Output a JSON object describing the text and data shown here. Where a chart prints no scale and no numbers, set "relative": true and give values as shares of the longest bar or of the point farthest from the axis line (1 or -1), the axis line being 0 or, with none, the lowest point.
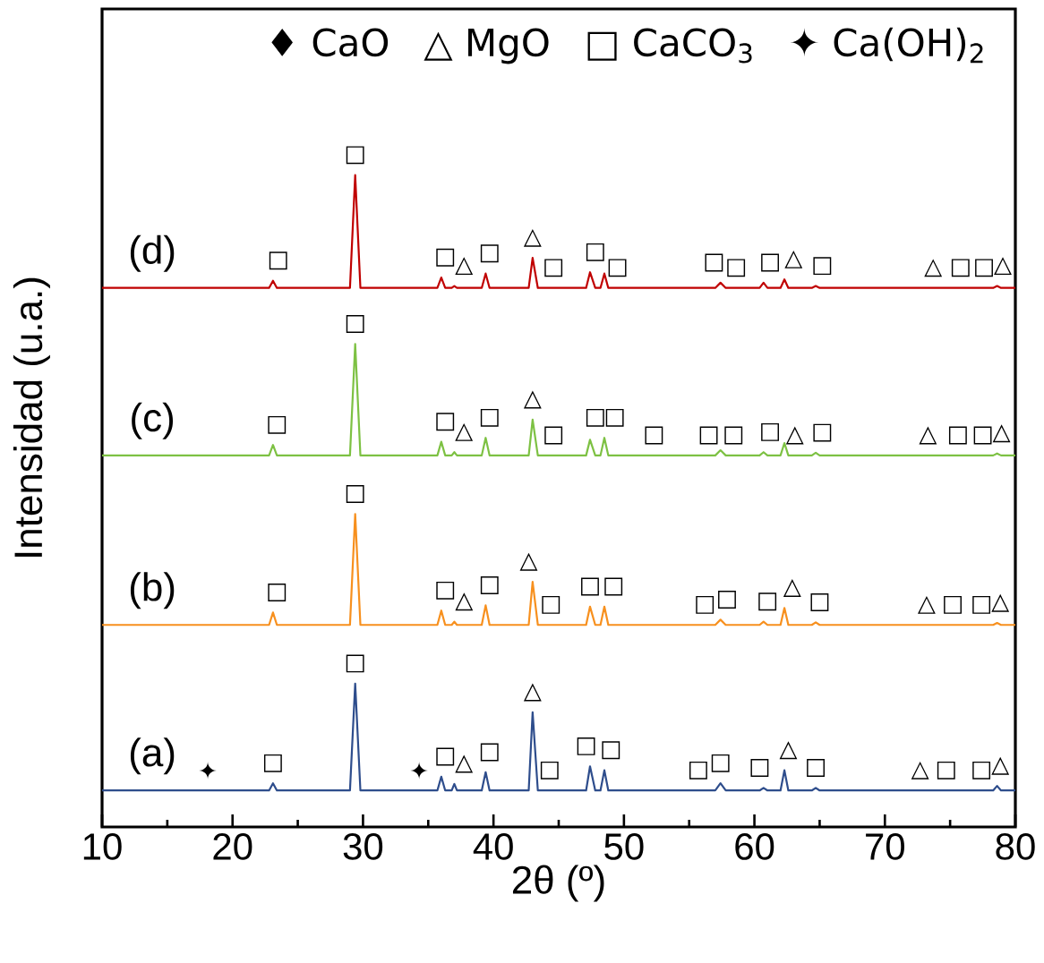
{
  "chart_data": {
    "type": "line",
    "relative": true,
    "xlabel": "2θ (º)",
    "ylabel": "Intensidad (u.a.)",
    "xlim": [
      10,
      80
    ],
    "xticks": [
      10,
      {
        "value": 15,
        "label": null
      },
      20,
      {
        "value": 25,
        "label": null
      },
      30,
      {
        "value": 35,
        "label": null
      },
      40,
      {
        "value": 45,
        "label": null
      },
      50,
      {
        "value": 55,
        "label": null
      },
      60,
      {
        "value": 65,
        "label": null
      },
      70,
      {
        "value": 75,
        "label": null
      },
      80
    ],
    "grid": false,
    "marker": "none",
    "line_style": "solid",
    "x": [
      10,
      22.8,
      23.1,
      23.4,
      29.0,
      29.4,
      29.8,
      35.7,
      36.0,
      36.3,
      36.8,
      37.0,
      37.2,
      39.1,
      39.4,
      39.7,
      42.7,
      43.0,
      43.4,
      47.1,
      47.4,
      47.8,
      48.2,
      48.5,
      48.8,
      57.0,
      57.4,
      57.8,
      60.4,
      60.7,
      61.0,
      62.0,
      62.3,
      62.6,
      64.4,
      64.7,
      65.0,
      78.3,
      78.6,
      78.9,
      80
    ],
    "series": [
      {
        "name": "(a)",
        "color": "#2e4d8c",
        "values": [
          0.056,
          0.056,
          0.067,
          0.056,
          0.056,
          0.22,
          0.056,
          0.056,
          0.077,
          0.056,
          0.056,
          0.066,
          0.056,
          0.056,
          0.084,
          0.056,
          0.056,
          0.176,
          0.056,
          0.056,
          0.093,
          0.056,
          0.056,
          0.087,
          0.056,
          0.056,
          0.067,
          0.056,
          0.056,
          0.06,
          0.056,
          0.056,
          0.087,
          0.056,
          0.056,
          0.06,
          0.056,
          0.056,
          0.063,
          0.056,
          0.056
        ]
      },
      {
        "name": "(b)",
        "color": "#f7901e",
        "values": [
          0.31,
          0.31,
          0.329,
          0.31,
          0.31,
          0.48,
          0.31,
          0.31,
          0.332,
          0.31,
          0.31,
          0.315,
          0.31,
          0.31,
          0.34,
          0.31,
          0.31,
          0.376,
          0.31,
          0.31,
          0.338,
          0.31,
          0.31,
          0.338,
          0.31,
          0.31,
          0.318,
          0.31,
          0.31,
          0.315,
          0.31,
          0.31,
          0.336,
          0.31,
          0.31,
          0.314,
          0.31,
          0.31,
          0.313,
          0.31,
          0.31
        ]
      },
      {
        "name": "(c)",
        "color": "#7dc143",
        "values": [
          0.57,
          0.57,
          0.586,
          0.57,
          0.57,
          0.741,
          0.57,
          0.57,
          0.591,
          0.57,
          0.57,
          0.575,
          0.57,
          0.57,
          0.597,
          0.57,
          0.57,
          0.625,
          0.57,
          0.57,
          0.594,
          0.57,
          0.57,
          0.597,
          0.57,
          0.57,
          0.578,
          0.57,
          0.57,
          0.575,
          0.57,
          0.57,
          0.589,
          0.57,
          0.57,
          0.574,
          0.57,
          0.57,
          0.573,
          0.57,
          0.57
        ]
      },
      {
        "name": "(d)",
        "color": "#c00000",
        "values": [
          0.827,
          0.827,
          0.838,
          0.827,
          0.827,
          1.0,
          0.827,
          0.827,
          0.843,
          0.827,
          0.827,
          0.83,
          0.827,
          0.827,
          0.849,
          0.827,
          0.827,
          0.873,
          0.827,
          0.827,
          0.851,
          0.827,
          0.827,
          0.849,
          0.827,
          0.827,
          0.835,
          0.827,
          0.827,
          0.835,
          0.827,
          0.827,
          0.84,
          0.827,
          0.827,
          0.83,
          0.827,
          0.827,
          0.83,
          0.827,
          0.827
        ]
      }
    ],
    "annotations": [
      "♦ CaO",
      "△ MgO",
      "□ CaCO$_{3}$",
      "✦ Ca(OH)$_{2}$",
      {
        "text": "□",
        "x": 23.5,
        "y": 0.827
      },
      {
        "text": "□",
        "x": 29.4,
        "y": 1.0
      },
      {
        "text": "□",
        "x": 36.3,
        "y": 0.827
      },
      {
        "text": "△",
        "x": 37.7,
        "y": 0.827
      },
      {
        "text": "□",
        "x": 39.7,
        "y": 0.827
      },
      {
        "text": "△",
        "x": 43.0,
        "y": 0.873
      },
      {
        "text": "□",
        "x": 44.6,
        "y": 0.827
      },
      {
        "text": "□",
        "x": 47.8,
        "y": 0.827
      },
      {
        "text": "□",
        "x": 49.5,
        "y": 0.827
      },
      {
        "text": "□",
        "x": 56.9,
        "y": 0.827
      },
      {
        "text": "□",
        "x": 58.6,
        "y": 0.827
      },
      {
        "text": "□",
        "x": 61.2,
        "y": 0.827
      },
      {
        "text": "△",
        "x": 63.0,
        "y": 0.827
      },
      {
        "text": "□",
        "x": 65.2,
        "y": 0.827
      },
      {
        "text": "△",
        "x": 73.7,
        "y": 0.827
      },
      {
        "text": "□",
        "x": 75.8,
        "y": 0.827
      },
      {
        "text": "□",
        "x": 77.6,
        "y": 0.827
      },
      {
        "text": "△",
        "x": 78.6,
        "y": 0.83
      },
      {
        "text": "□",
        "x": 23.4,
        "y": 0.57
      },
      {
        "text": "□",
        "x": 29.4,
        "y": 0.741
      },
      {
        "text": "□",
        "x": 36.3,
        "y": 0.57
      },
      {
        "text": "△",
        "x": 37.6,
        "y": 0.57
      },
      {
        "text": "□",
        "x": 39.7,
        "y": 0.57
      },
      {
        "text": "△",
        "x": 43.0,
        "y": 0.625
      },
      {
        "text": "□",
        "x": 44.6,
        "y": 0.57
      },
      {
        "text": "□",
        "x": 47.8,
        "y": 0.57
      },
      {
        "text": "□",
        "x": 49.3,
        "y": 0.57
      },
      {
        "text": "□",
        "x": 52.3,
        "y": 0.57
      },
      {
        "text": "□",
        "x": 56.5,
        "y": 0.57
      },
      {
        "text": "□",
        "x": 58.4,
        "y": 0.57
      },
      {
        "text": "□",
        "x": 61.2,
        "y": 0.57
      },
      {
        "text": "△",
        "x": 63.1,
        "y": 0.57
      },
      {
        "text": "□",
        "x": 65.2,
        "y": 0.57
      },
      {
        "text": "△",
        "x": 73.3,
        "y": 0.57
      },
      {
        "text": "□",
        "x": 75.6,
        "y": 0.57
      },
      {
        "text": "□",
        "x": 77.5,
        "y": 0.57
      },
      {
        "text": "△",
        "x": 78.6,
        "y": 0.573
      },
      {
        "text": "□",
        "x": 23.4,
        "y": 0.31
      },
      {
        "text": "□",
        "x": 29.4,
        "y": 0.48
      },
      {
        "text": "□",
        "x": 36.3,
        "y": 0.31
      },
      {
        "text": "△",
        "x": 37.5,
        "y": 0.31
      },
      {
        "text": "□",
        "x": 39.7,
        "y": 0.31
      },
      {
        "text": "△",
        "x": 42.7,
        "y": 0.31
      },
      {
        "text": "□",
        "x": 44.4,
        "y": 0.31
      },
      {
        "text": "□",
        "x": 47.4,
        "y": 0.338
      },
      {
        "text": "□",
        "x": 49.2,
        "y": 0.31
      },
      {
        "text": "□",
        "x": 56.2,
        "y": 0.31
      },
      {
        "text": "□",
        "x": 57.9,
        "y": 0.31
      },
      {
        "text": "□",
        "x": 61.0,
        "y": 0.31
      },
      {
        "text": "△",
        "x": 62.9,
        "y": 0.31
      },
      {
        "text": "□",
        "x": 65.0,
        "y": 0.31
      },
      {
        "text": "△",
        "x": 73.2,
        "y": 0.31
      },
      {
        "text": "□",
        "x": 75.2,
        "y": 0.31
      },
      {
        "text": "□",
        "x": 77.4,
        "y": 0.31
      },
      {
        "text": "△",
        "x": 78.6,
        "y": 0.313
      },
      {
        "text": "✦",
        "x": 18.1,
        "y": 0.056
      },
      {
        "text": "□",
        "x": 23.1,
        "y": 0.067
      },
      {
        "text": "□",
        "x": 29.4,
        "y": 0.22
      },
      {
        "text": "✦",
        "x": 34.3,
        "y": 0.056
      },
      {
        "text": "□",
        "x": 36.3,
        "y": 0.056
      },
      {
        "text": "△",
        "x": 37.3,
        "y": 0.056
      },
      {
        "text": "□",
        "x": 39.7,
        "y": 0.056
      },
      {
        "text": "△",
        "x": 43.0,
        "y": 0.176
      },
      {
        "text": "□",
        "x": 44.3,
        "y": 0.056
      },
      {
        "text": "□",
        "x": 47.1,
        "y": 0.056
      },
      {
        "text": "□",
        "x": 49.0,
        "y": 0.056
      },
      {
        "text": "□",
        "x": 55.7,
        "y": 0.056
      },
      {
        "text": "□",
        "x": 57.4,
        "y": 0.067
      },
      {
        "text": "□",
        "x": 60.4,
        "y": 0.056
      },
      {
        "text": "△",
        "x": 62.6,
        "y": 0.056
      },
      {
        "text": "□",
        "x": 64.7,
        "y": 0.06
      },
      {
        "text": "△",
        "x": 72.7,
        "y": 0.056
      },
      {
        "text": "□",
        "x": 74.7,
        "y": 0.056
      },
      {
        "text": "□",
        "x": 77.4,
        "y": 0.056
      },
      {
        "text": "△",
        "x": 78.6,
        "y": 0.063
      }
    ]
  }
}
